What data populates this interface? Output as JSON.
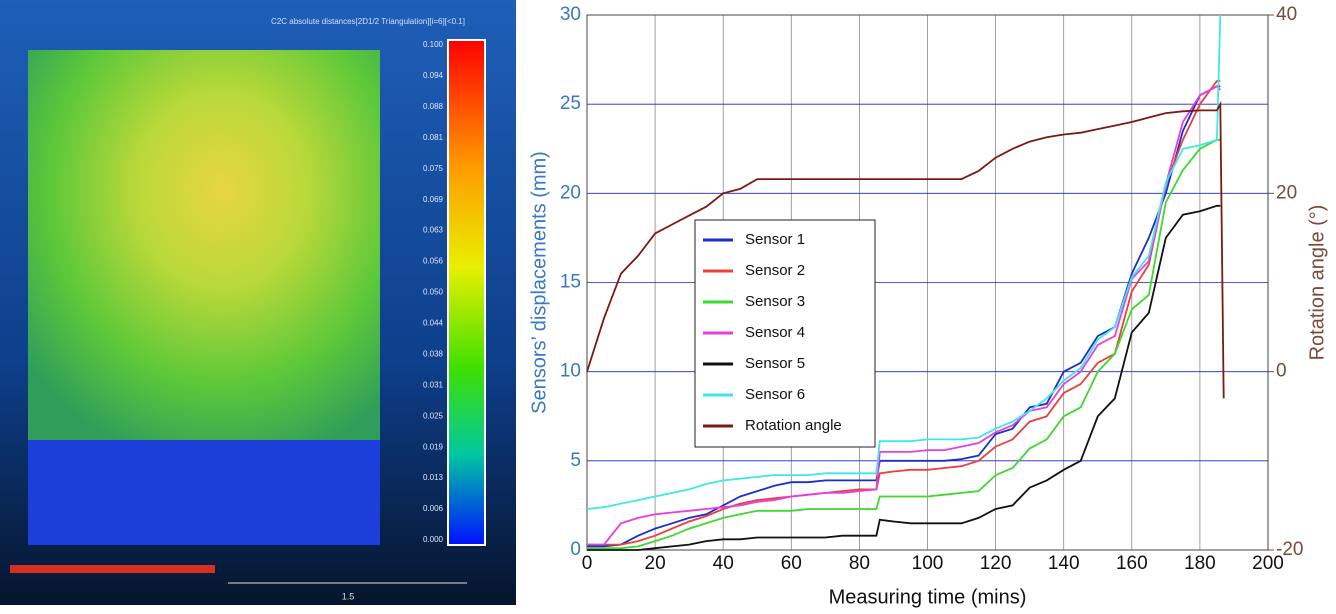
{
  "scan": {
    "title": "C2C absolute distances[2D1/2 Triangulation][i=6][<0.1]",
    "scale_labels": [
      "0.100",
      "0.094",
      "0.088",
      "0.081",
      "0.075",
      "0.069",
      "0.063",
      "0.056",
      "0.050",
      "0.044",
      "0.038",
      "0.031",
      "0.025",
      "0.019",
      "0.013",
      "0.006",
      "0.000"
    ],
    "scale_bar_label": "1.5"
  },
  "chart_data": {
    "type": "line",
    "xlabel": "Measuring time (mins)",
    "ylabel": "Sensors’ displacements (mm)",
    "y2label": "Rotation angle (°)",
    "x": [
      0,
      5,
      10,
      15,
      20,
      25,
      30,
      35,
      40,
      45,
      50,
      55,
      60,
      65,
      70,
      75,
      80,
      85,
      86,
      90,
      95,
      100,
      105,
      110,
      115,
      120,
      125,
      130,
      135,
      140,
      145,
      150,
      155,
      160,
      165,
      170,
      175,
      180,
      185,
      186,
      187
    ],
    "xlim": [
      0,
      200
    ],
    "xticks": [
      0,
      20,
      40,
      60,
      80,
      100,
      120,
      140,
      160,
      180,
      200
    ],
    "ylim": [
      0,
      30
    ],
    "yticks": [
      0,
      5,
      10,
      15,
      20,
      25,
      30
    ],
    "y2lim": [
      -20,
      40
    ],
    "y2ticks": [
      -20,
      0,
      20,
      40
    ],
    "grid": true,
    "legend": "center-left",
    "series": [
      {
        "name": "Sensor 1",
        "color": "#1a2fc8",
        "values": [
          0.2,
          0.2,
          0.3,
          0.8,
          1.2,
          1.5,
          1.8,
          2,
          2.5,
          3,
          3.3,
          3.6,
          3.8,
          3.8,
          3.9,
          3.9,
          3.9,
          3.9,
          5,
          5,
          5,
          5,
          5,
          5.1,
          5.3,
          6.5,
          6.8,
          8,
          8.2,
          10,
          10.5,
          12,
          12.5,
          15.5,
          17.5,
          20,
          23.5,
          25.5,
          26,
          26,
          null
        ]
      },
      {
        "name": "Sensor 2",
        "color": "#e8403a",
        "values": [
          0.3,
          0.3,
          0.3,
          0.5,
          0.8,
          1.2,
          1.6,
          1.9,
          2.3,
          2.6,
          2.8,
          2.9,
          3.0,
          3.1,
          3.2,
          3.3,
          3.4,
          3.4,
          4.3,
          4.4,
          4.5,
          4.5,
          4.6,
          4.7,
          5,
          5.8,
          6.2,
          7.2,
          7.5,
          8.8,
          9.3,
          10.5,
          11,
          14.5,
          16,
          20.5,
          23,
          25,
          26.3,
          26.3,
          null
        ]
      },
      {
        "name": "Sensor 3",
        "color": "#3ed82e",
        "values": [
          0.1,
          0.1,
          0.1,
          0.2,
          0.5,
          0.8,
          1.2,
          1.5,
          1.8,
          2,
          2.2,
          2.2,
          2.2,
          2.3,
          2.3,
          2.3,
          2.3,
          2.3,
          3,
          3,
          3,
          3,
          3.1,
          3.2,
          3.3,
          4.2,
          4.6,
          5.7,
          6.2,
          7.5,
          8,
          10,
          11,
          13.5,
          14.3,
          19.5,
          21.3,
          22.5,
          23,
          23,
          null
        ]
      },
      {
        "name": "Sensor 4",
        "color": "#e83ee0",
        "values": [
          0.3,
          0.3,
          1.5,
          1.8,
          2,
          2.1,
          2.2,
          2.3,
          2.4,
          2.5,
          2.7,
          2.8,
          3,
          3.1,
          3.2,
          3.2,
          3.3,
          3.4,
          5.5,
          5.5,
          5.5,
          5.6,
          5.6,
          5.8,
          6,
          6.6,
          7,
          7.8,
          8,
          9.3,
          10,
          11.5,
          12,
          15.2,
          16.2,
          20.5,
          24,
          25.5,
          26,
          25.8,
          null
        ]
      },
      {
        "name": "Sensor 5",
        "color": "#111111",
        "values": [
          0,
          0,
          0,
          0,
          0.1,
          0.2,
          0.3,
          0.5,
          0.6,
          0.6,
          0.7,
          0.7,
          0.7,
          0.7,
          0.7,
          0.8,
          0.8,
          0.8,
          1.7,
          1.6,
          1.5,
          1.5,
          1.5,
          1.5,
          1.8,
          2.3,
          2.5,
          3.5,
          3.9,
          4.5,
          5,
          7.5,
          8.5,
          12.2,
          13.3,
          17.5,
          18.8,
          19,
          19.3,
          19.3,
          null
        ]
      },
      {
        "name": "Sensor 6",
        "color": "#3ee8e8",
        "values": [
          2.3,
          2.4,
          2.6,
          2.8,
          3,
          3.2,
          3.4,
          3.7,
          3.9,
          4,
          4.1,
          4.2,
          4.2,
          4.2,
          4.3,
          4.3,
          4.3,
          4.3,
          6.1,
          6.1,
          6.1,
          6.2,
          6.2,
          6.2,
          6.3,
          6.8,
          7.2,
          7.8,
          8.5,
          9.5,
          10.2,
          11.8,
          12.5,
          15.3,
          16.5,
          20.6,
          22.5,
          22.7,
          23,
          30,
          null
        ]
      },
      {
        "name": "Rotation angle",
        "color": "#7a1a10",
        "axis": "y2",
        "values": [
          0,
          6,
          11,
          13,
          15.5,
          16.5,
          17.5,
          18.5,
          20,
          20.5,
          21.6,
          21.6,
          21.6,
          21.6,
          21.6,
          21.6,
          21.6,
          21.6,
          21.6,
          21.6,
          21.6,
          21.6,
          21.6,
          21.6,
          22.5,
          24,
          25,
          25.8,
          26.3,
          26.6,
          26.8,
          27.2,
          27.6,
          28,
          28.5,
          29,
          29.2,
          29.3,
          29.3,
          30,
          -3
        ]
      }
    ]
  }
}
